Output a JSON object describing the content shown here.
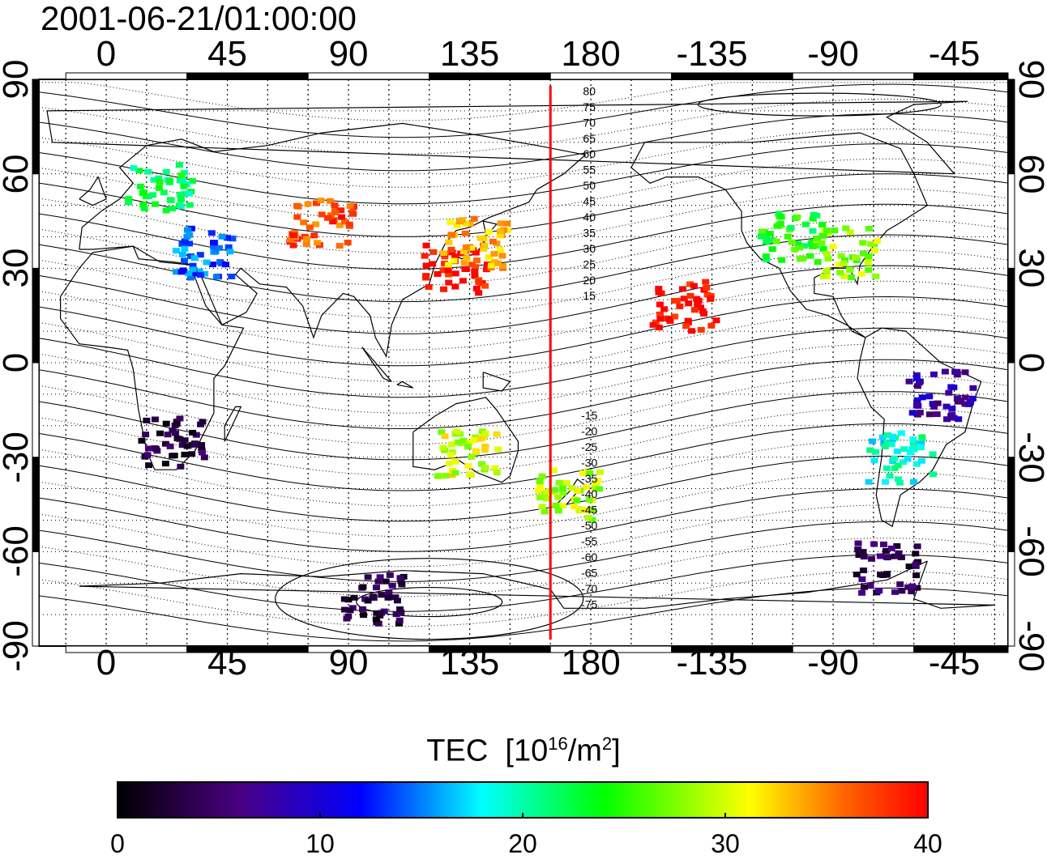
{
  "title": "2001-06-21/01:00:00",
  "longitude_ticks_top": [
    "0",
    "45",
    "90",
    "135",
    "180",
    "-135",
    "-90",
    "-45"
  ],
  "longitude_ticks_bottom": [
    "0",
    "45",
    "90",
    "135",
    "180",
    "-135",
    "-90",
    "-45"
  ],
  "latitude_ticks_left": [
    "90",
    "60",
    "30",
    "0",
    "-30",
    "-60",
    "-90"
  ],
  "latitude_ticks_right": [
    "90",
    "60",
    "30",
    "0",
    "-30",
    "-60",
    "-90"
  ],
  "contour_labels": [
    "80",
    "75",
    "70",
    "65",
    "60",
    "55",
    "50",
    "45",
    "40",
    "35",
    "30",
    "25",
    "20",
    "15",
    "-15",
    "-20",
    "-25",
    "-30",
    "-35",
    "-40",
    "-45",
    "-50",
    "-55",
    "-60",
    "-65",
    "-70",
    "-75"
  ],
  "colorbar": {
    "title": "TEC",
    "unit_base": "[10",
    "unit_exp": "16",
    "unit_rest": "/m",
    "unit_exp2": "2",
    "unit_close": "]",
    "ticks": [
      "0",
      "10",
      "20",
      "30",
      "40"
    ],
    "range": [
      0,
      40
    ]
  },
  "colors": {
    "frame": "#000000",
    "highlight_line": "#ff0000",
    "colorbar_stops": [
      "#000000",
      "#4b0082",
      "#0000ff",
      "#00ffff",
      "#00ff00",
      "#ffff00",
      "#ff0000"
    ]
  },
  "chart_data": {
    "type": "scatter",
    "xlabel": "",
    "ylabel": "",
    "xlim": [
      -25,
      335
    ],
    "ylim": [
      -90,
      90
    ],
    "highlight_longitude": 165,
    "clusters": [
      {
        "lon": 20,
        "lat": 55,
        "tec": 22
      },
      {
        "lon": 35,
        "lat": 35,
        "tec": 14
      },
      {
        "lon": 80,
        "lat": 45,
        "tec": 37
      },
      {
        "lon": 130,
        "lat": 30,
        "tec": 40
      },
      {
        "lon": 137,
        "lat": 38,
        "tec": 33
      },
      {
        "lon": 135,
        "lat": -28,
        "tec": 30
      },
      {
        "lon": 172,
        "lat": -42,
        "tec": 29
      },
      {
        "lon": 25,
        "lat": -25,
        "tec": 3
      },
      {
        "lon": 255,
        "lat": 40,
        "tec": 24
      },
      {
        "lon": 275,
        "lat": 35,
        "tec": 28
      },
      {
        "lon": 295,
        "lat": -30,
        "tec": 19
      },
      {
        "lon": 310,
        "lat": -10,
        "tec": 8
      },
      {
        "lon": 290,
        "lat": -65,
        "tec": 4
      },
      {
        "lon": 100,
        "lat": -75,
        "tec": 3
      },
      {
        "lon": 215,
        "lat": 18,
        "tec": 40
      }
    ]
  }
}
